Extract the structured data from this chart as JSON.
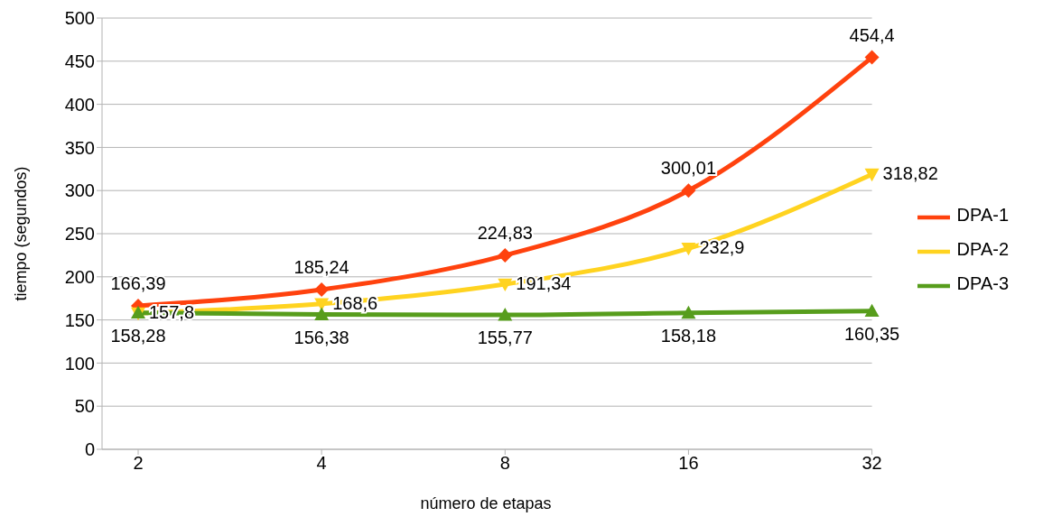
{
  "chart_data": {
    "type": "line",
    "xlabel": "número de etapas",
    "ylabel": "tiempo (segundos)",
    "categories": [
      "2",
      "4",
      "8",
      "16",
      "32"
    ],
    "series": [
      {
        "name": "DPA-1",
        "color": "#ff420e",
        "marker": "diamond",
        "values": [
          166.39,
          185.24,
          224.83,
          300.01,
          454.4
        ],
        "value_labels": [
          "166,39",
          "185,24",
          "224,83",
          "300,01",
          "454,4"
        ]
      },
      {
        "name": "DPA-2",
        "color": "#ffd320",
        "marker": "triangle-down",
        "values": [
          157.8,
          168.6,
          191.34,
          232.9,
          318.82
        ],
        "value_labels": [
          "157,8",
          "168,6",
          "191,34",
          "232,9",
          "318,82"
        ]
      },
      {
        "name": "DPA-3",
        "color": "#579d1c",
        "marker": "triangle",
        "values": [
          158.28,
          156.38,
          155.77,
          158.18,
          160.35
        ],
        "value_labels": [
          "158,28",
          "156,38",
          "155,77",
          "158,18",
          "160,35"
        ]
      }
    ],
    "ylim": [
      0,
      500
    ],
    "yticks": [
      0,
      50,
      100,
      150,
      200,
      250,
      300,
      350,
      400,
      450,
      500
    ],
    "grid": "y",
    "legend": "right"
  }
}
